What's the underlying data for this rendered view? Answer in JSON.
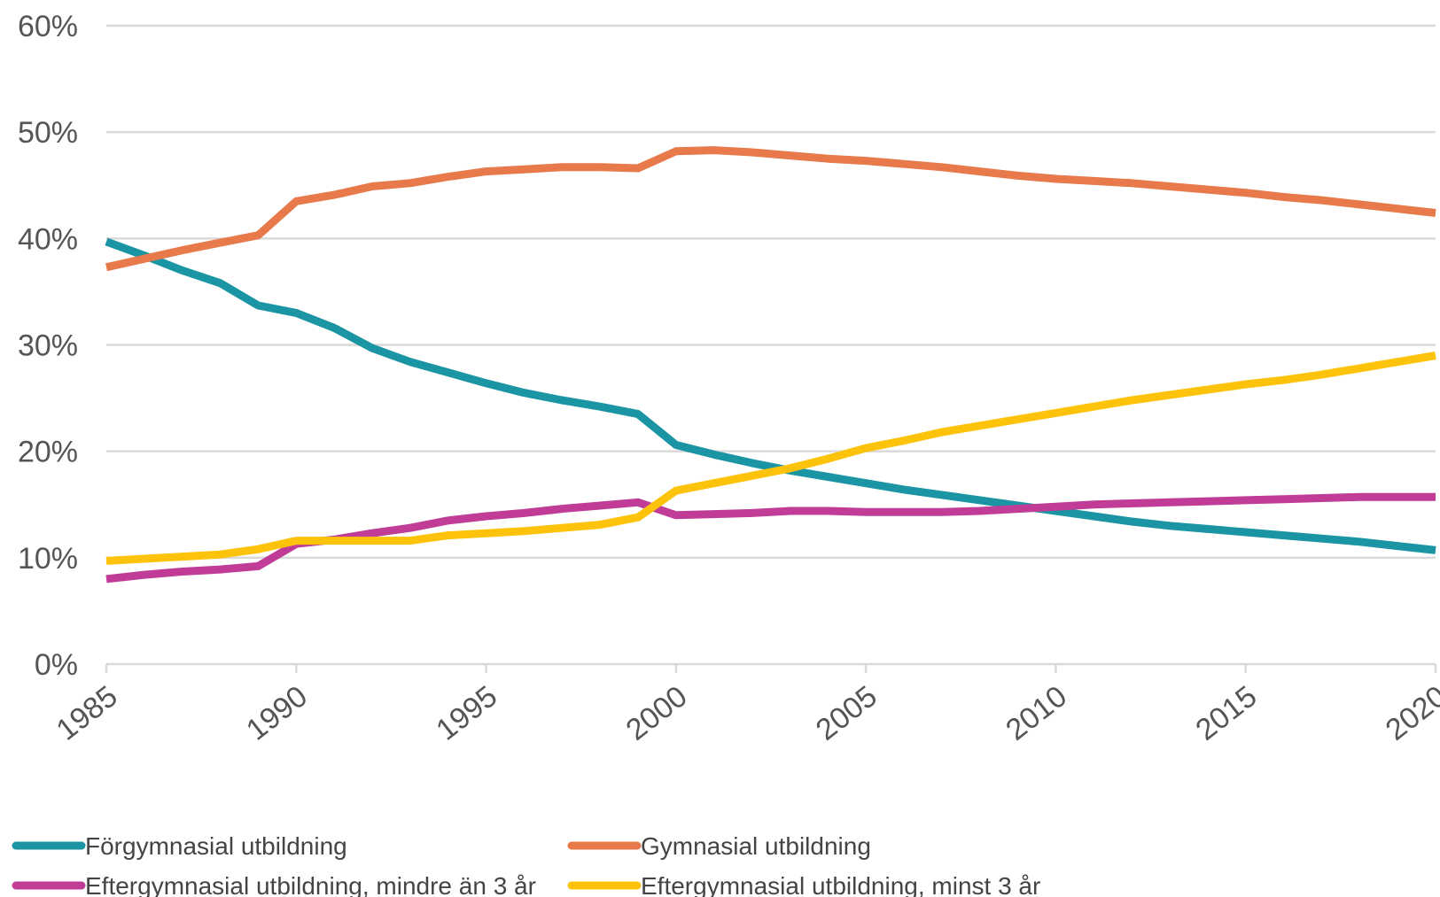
{
  "chart_data": {
    "type": "line",
    "title": "",
    "xlabel": "",
    "ylabel": "",
    "x": [
      1985,
      1986,
      1987,
      1988,
      1989,
      1990,
      1991,
      1992,
      1993,
      1994,
      1995,
      1996,
      1997,
      1998,
      1999,
      2000,
      2001,
      2002,
      2003,
      2004,
      2005,
      2006,
      2007,
      2008,
      2009,
      2010,
      2011,
      2012,
      2013,
      2014,
      2015,
      2016,
      2017,
      2018,
      2019,
      2020
    ],
    "xlim": [
      1985,
      2020
    ],
    "ylim": [
      0,
      60
    ],
    "x_ticks": [
      "1985",
      "1990",
      "1995",
      "2000",
      "2005",
      "2010",
      "2015",
      "2020"
    ],
    "y_ticks": [
      "0%",
      "10%",
      "20%",
      "30%",
      "40%",
      "50%",
      "60%"
    ],
    "grid": "horizontal",
    "legend_position": "bottom",
    "series": [
      {
        "name": "Förgymnasial utbildning",
        "color": "#1b95a3",
        "values": [
          39.7,
          38.4,
          37.0,
          35.8,
          33.7,
          33.0,
          31.6,
          29.7,
          28.4,
          27.4,
          26.4,
          25.5,
          24.8,
          24.2,
          23.5,
          20.6,
          19.7,
          18.9,
          18.2,
          17.6,
          17.0,
          16.4,
          15.9,
          15.4,
          14.9,
          14.4,
          13.9,
          13.4,
          13.0,
          12.7,
          12.4,
          12.1,
          11.8,
          11.5,
          11.1,
          10.7
        ]
      },
      {
        "name": "Gymnasial utbildning",
        "color": "#e8794a",
        "values": [
          37.3,
          38.1,
          38.9,
          39.6,
          40.3,
          43.5,
          44.1,
          44.9,
          45.2,
          45.8,
          46.3,
          46.5,
          46.7,
          46.7,
          46.6,
          48.2,
          48.3,
          48.1,
          47.8,
          47.5,
          47.3,
          47.0,
          46.7,
          46.3,
          45.9,
          45.6,
          45.4,
          45.2,
          44.9,
          44.6,
          44.3,
          43.9,
          43.6,
          43.2,
          42.8,
          42.4
        ]
      },
      {
        "name": "Eftergymnasial utbildning, mindre än 3 år",
        "color": "#c13c97",
        "values": [
          8.0,
          8.4,
          8.7,
          8.9,
          9.2,
          11.3,
          11.7,
          12.3,
          12.8,
          13.5,
          13.9,
          14.2,
          14.6,
          14.9,
          15.2,
          14.0,
          14.1,
          14.2,
          14.4,
          14.4,
          14.3,
          14.3,
          14.3,
          14.4,
          14.6,
          14.8,
          15.0,
          15.1,
          15.2,
          15.3,
          15.4,
          15.5,
          15.6,
          15.7,
          15.7,
          15.7
        ]
      },
      {
        "name": "Eftergymnasial utbildning, minst 3 år",
        "color": "#fcc30a",
        "values": [
          9.7,
          9.9,
          10.1,
          10.3,
          10.8,
          11.6,
          11.6,
          11.6,
          11.6,
          12.1,
          12.3,
          12.5,
          12.8,
          13.1,
          13.8,
          16.3,
          17.0,
          17.7,
          18.4,
          19.3,
          20.3,
          21.0,
          21.8,
          22.4,
          23.0,
          23.6,
          24.2,
          24.8,
          25.3,
          25.8,
          26.3,
          26.7,
          27.2,
          27.8,
          28.4,
          29.0
        ]
      }
    ]
  }
}
